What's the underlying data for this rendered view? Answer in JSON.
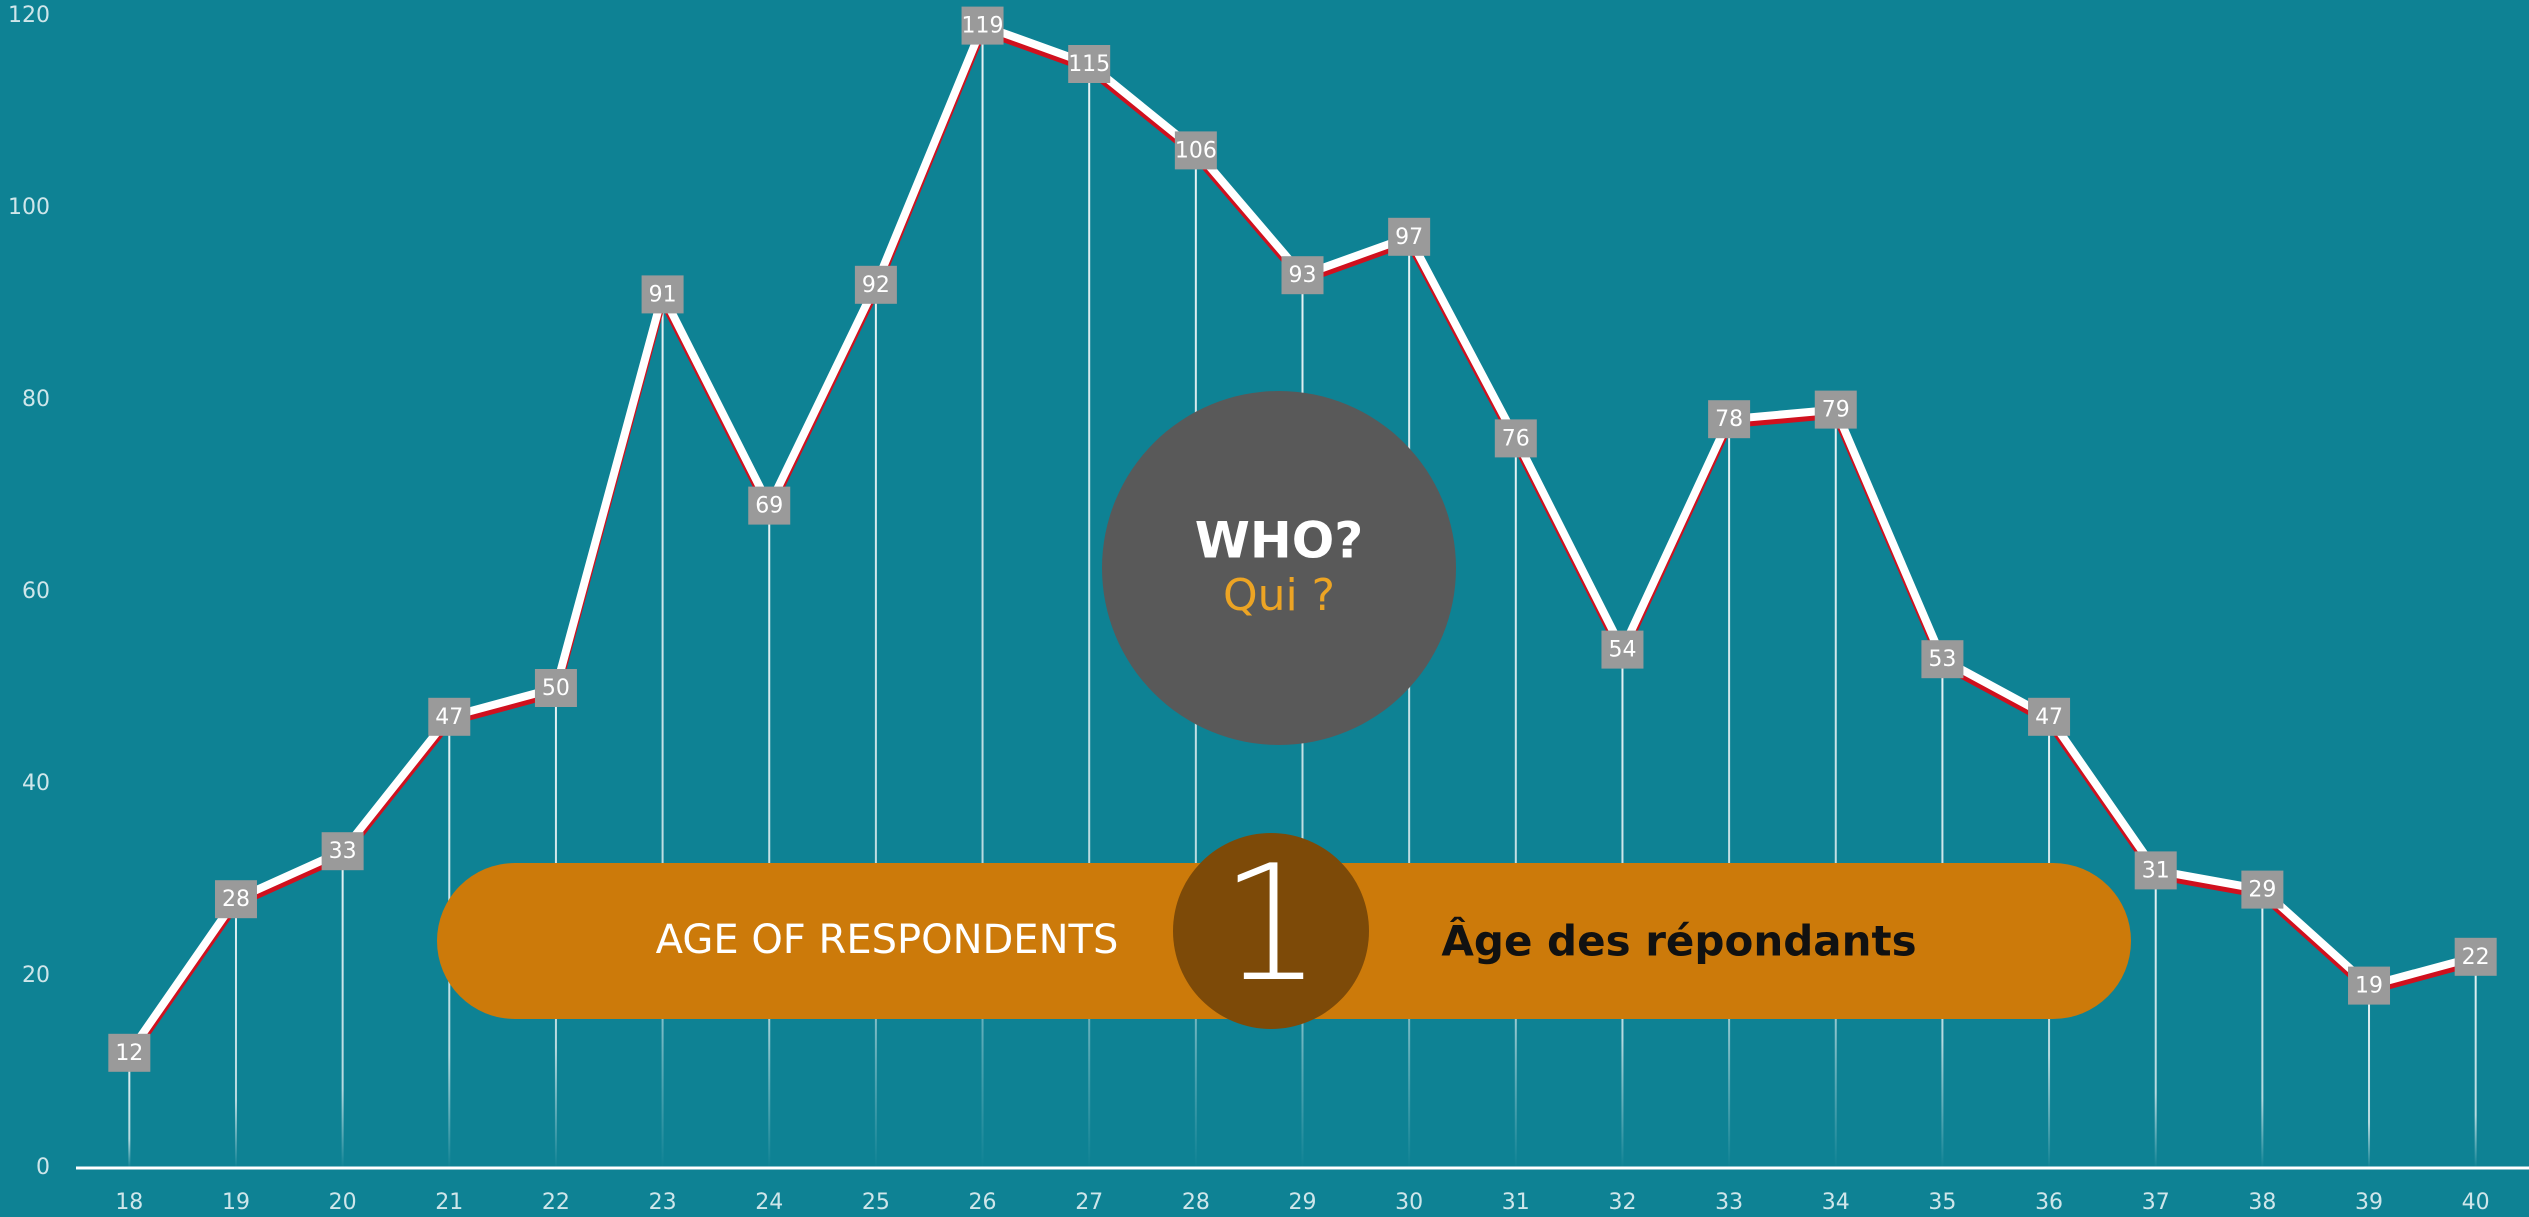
{
  "chart_data": {
    "type": "line",
    "x": [
      18,
      19,
      20,
      21,
      22,
      23,
      24,
      25,
      26,
      27,
      28,
      29,
      30,
      31,
      32,
      33,
      34,
      35,
      36,
      37,
      38,
      39,
      40
    ],
    "values": [
      12,
      28,
      33,
      47,
      50,
      91,
      69,
      92,
      119,
      115,
      106,
      93,
      97,
      76,
      54,
      78,
      79,
      53,
      47,
      31,
      29,
      19,
      22
    ],
    "color": "#ffffff",
    "shadow_color": "#d0101e",
    "label_color": "#9a9a9a",
    "xlim": [
      17.5,
      40.5
    ],
    "xticks": [
      18,
      19,
      20,
      21,
      22,
      23,
      24,
      25,
      26,
      27,
      28,
      29,
      30,
      31,
      32,
      33,
      34,
      35,
      36,
      37,
      38,
      39,
      40
    ],
    "ylim": [
      0,
      120
    ],
    "yticks": [
      0,
      20,
      40,
      60,
      80,
      100,
      120
    ],
    "annotations": {
      "question": "WHO?",
      "question_fr": "Qui ?",
      "section_number": "1",
      "section_title": "AGE OF RESPONDENTS",
      "section_title_fr": "Âge des répondants"
    }
  }
}
